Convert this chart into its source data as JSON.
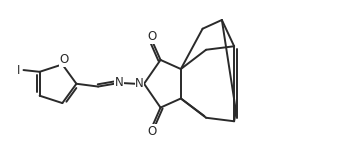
{
  "bg_color": "#ffffff",
  "line_color": "#2a2a2a",
  "lw": 1.4,
  "fs": 8.5,
  "text_color": "#2a2a2a",
  "xlim": [
    0,
    10
  ],
  "ylim": [
    0,
    4.4
  ],
  "figsize": [
    3.54,
    1.57
  ],
  "dpi": 100
}
